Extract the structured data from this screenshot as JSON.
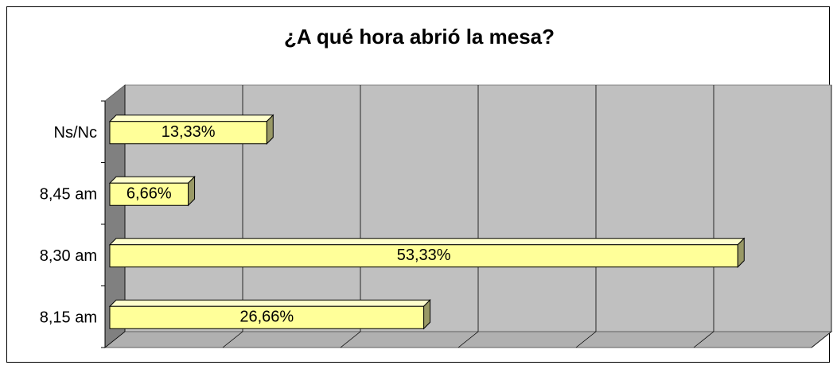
{
  "chart_data": {
    "type": "bar3d_horizontal",
    "title": "¿A qué hora abrió la mesa?",
    "categories": [
      "8,15 am",
      "8,30 am",
      "8,45 am",
      "Ns/Nc"
    ],
    "values": [
      26.66,
      53.33,
      6.66,
      13.33
    ],
    "value_labels": [
      "26,66%",
      "53,33%",
      "6,66%",
      "13,33%"
    ],
    "color": "#ffff99",
    "xlim": [
      0,
      60
    ],
    "xticks": [
      0,
      10,
      20,
      30,
      40,
      50,
      60
    ],
    "grid": true
  }
}
